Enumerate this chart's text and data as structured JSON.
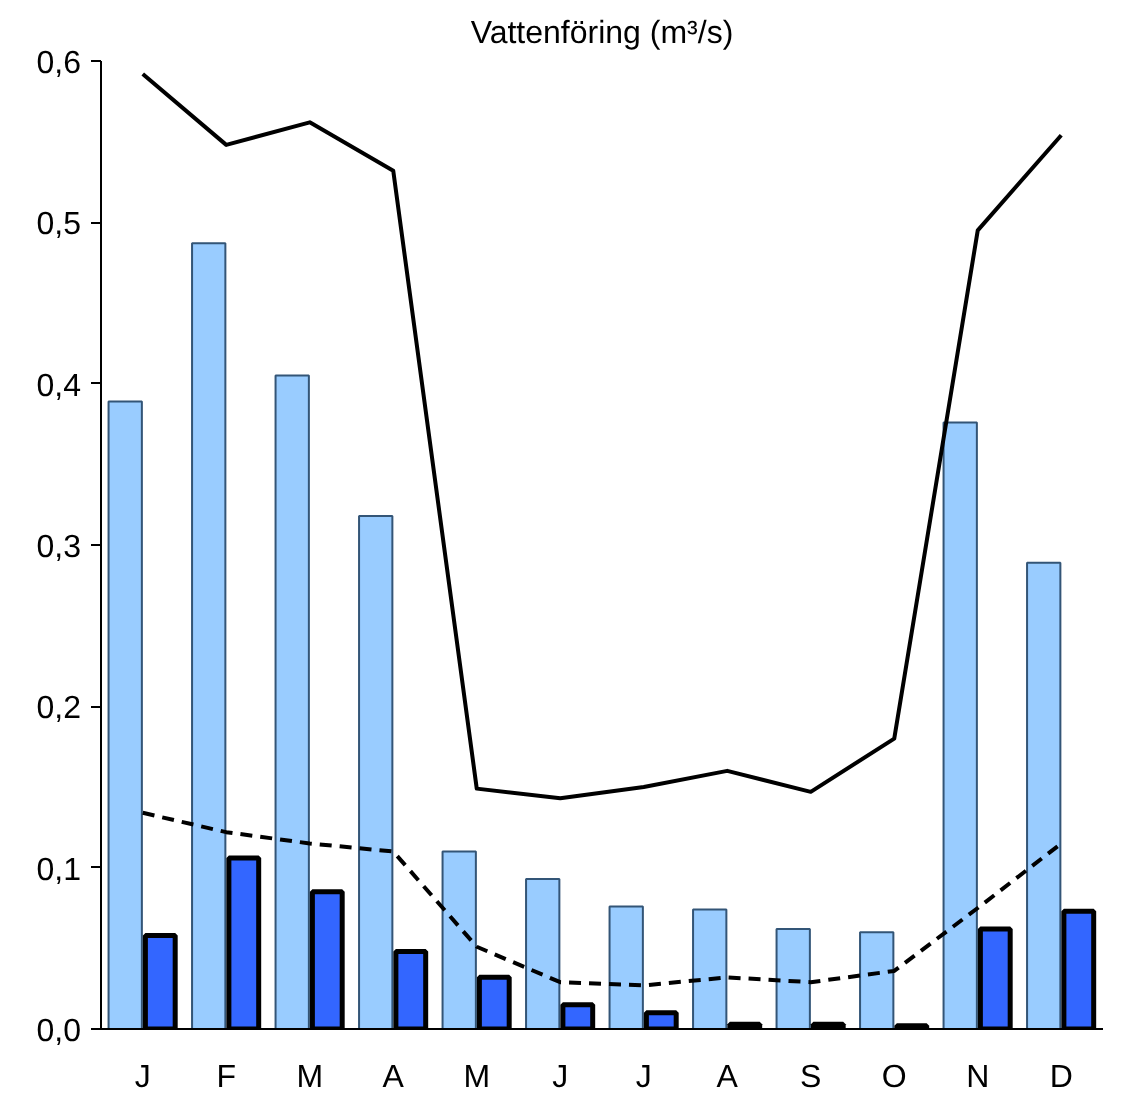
{
  "chart_data": {
    "type": "bar",
    "title": "Vattenföring (m³/s)",
    "categories": [
      "J",
      "F",
      "M",
      "A",
      "M",
      "J",
      "J",
      "A",
      "S",
      "O",
      "N",
      "D"
    ],
    "series": [
      {
        "color": "#99ccff",
        "values": [
          0.389,
          0.487,
          0.405,
          0.318,
          0.11,
          0.093,
          0.076,
          0.074,
          0.062,
          0.06,
          0.376,
          0.289
        ]
      },
      {
        "color": "#3366ff",
        "values": [
          0.058,
          0.106,
          0.085,
          0.048,
          0.032,
          0.015,
          0.01,
          0.003,
          0.003,
          0.002,
          0.062,
          0.073
        ]
      },
      {
        "type": "line",
        "color": "#000000",
        "line_style": "solid",
        "values": [
          0.592,
          0.548,
          0.562,
          0.532,
          0.149,
          0.143,
          0.15,
          0.16,
          0.147,
          0.18,
          0.495,
          0.554
        ]
      },
      {
        "type": "line",
        "color": "#000000",
        "line_style": "dashed",
        "values": [
          0.134,
          0.122,
          0.115,
          0.11,
          0.051,
          0.029,
          0.027,
          0.032,
          0.029,
          0.036,
          0.075,
          0.115
        ]
      }
    ],
    "ylim": [
      0,
      0.6
    ],
    "yticks": [
      {
        "value": 0,
        "label": "0,0"
      },
      {
        "value": 0.1,
        "label": "0,1"
      },
      {
        "value": 0.2,
        "label": "0,2"
      },
      {
        "value": 0.3,
        "label": "0,3"
      },
      {
        "value": 0.4,
        "label": "0,4"
      },
      {
        "value": 0.5,
        "label": "0,5"
      },
      {
        "value": 0.6,
        "label": "0,6"
      }
    ],
    "grid": false
  }
}
